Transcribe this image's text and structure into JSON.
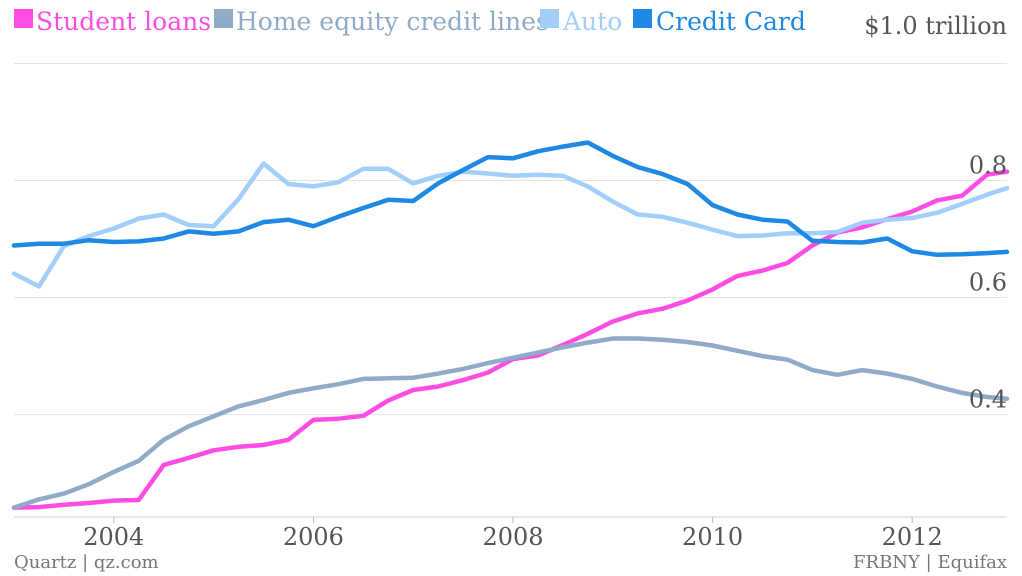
{
  "chart_data": {
    "type": "line",
    "title": "",
    "unit_label": "$1.0 trillion",
    "source_left": "Quartz | qz.com",
    "source_right": "FRBNY | Equifax",
    "xlim": [
      2003.0,
      2012.95
    ],
    "ylim": [
      0.225,
      1.035
    ],
    "x_ticks": [
      2004,
      2006,
      2008,
      2010,
      2012
    ],
    "x_tick_labels": [
      "2004",
      "2006",
      "2008",
      "2010",
      "2012"
    ],
    "y_ticks": [
      0.4,
      0.6,
      0.8
    ],
    "y_tick_labels": [
      "0.4",
      "0.6",
      "0.8"
    ],
    "grid": true,
    "legend_position": "top-left",
    "x": [
      2003.0,
      2003.25,
      2003.5,
      2003.75,
      2004.0,
      2004.25,
      2004.5,
      2004.75,
      2005.0,
      2005.25,
      2005.5,
      2005.75,
      2006.0,
      2006.25,
      2006.5,
      2006.75,
      2007.0,
      2007.25,
      2007.5,
      2007.75,
      2008.0,
      2008.25,
      2008.5,
      2008.75,
      2009.0,
      2009.25,
      2009.5,
      2009.75,
      2010.0,
      2010.25,
      2010.5,
      2010.75,
      2011.0,
      2011.25,
      2011.5,
      2011.75,
      2012.0,
      2012.25,
      2012.5,
      2012.75,
      2012.95
    ],
    "series": [
      {
        "name": "Student loans",
        "color": "#ff4de4",
        "values": [
          0.241,
          0.242,
          0.246,
          0.249,
          0.253,
          0.254,
          0.314,
          0.326,
          0.339,
          0.345,
          0.348,
          0.357,
          0.391,
          0.393,
          0.398,
          0.424,
          0.442,
          0.448,
          0.459,
          0.472,
          0.495,
          0.501,
          0.519,
          0.538,
          0.559,
          0.573,
          0.581,
          0.595,
          0.614,
          0.637,
          0.646,
          0.659,
          0.689,
          0.711,
          0.72,
          0.734,
          0.747,
          0.766,
          0.774,
          0.81,
          0.815
        ]
      },
      {
        "name": "Home equity credit lines",
        "color": "#8fabc7",
        "values": [
          0.241,
          0.255,
          0.265,
          0.281,
          0.302,
          0.321,
          0.357,
          0.38,
          0.397,
          0.414,
          0.425,
          0.437,
          0.445,
          0.452,
          0.461,
          0.462,
          0.463,
          0.47,
          0.478,
          0.488,
          0.497,
          0.506,
          0.515,
          0.523,
          0.53,
          0.53,
          0.528,
          0.524,
          0.518,
          0.509,
          0.5,
          0.494,
          0.476,
          0.468,
          0.476,
          0.47,
          0.461,
          0.448,
          0.437,
          0.43,
          0.427
        ]
      },
      {
        "name": "Auto",
        "color": "#a1cffa",
        "values": [
          0.641,
          0.619,
          0.688,
          0.705,
          0.718,
          0.735,
          0.742,
          0.724,
          0.722,
          0.768,
          0.829,
          0.794,
          0.79,
          0.797,
          0.82,
          0.82,
          0.795,
          0.808,
          0.815,
          0.812,
          0.808,
          0.81,
          0.808,
          0.79,
          0.764,
          0.742,
          0.738,
          0.728,
          0.716,
          0.705,
          0.706,
          0.71,
          0.71,
          0.712,
          0.728,
          0.733,
          0.736,
          0.745,
          0.76,
          0.776,
          0.787
        ]
      },
      {
        "name": "Credit Card",
        "color": "#1e88e5",
        "values": [
          0.689,
          0.692,
          0.692,
          0.698,
          0.695,
          0.696,
          0.701,
          0.713,
          0.709,
          0.713,
          0.729,
          0.733,
          0.722,
          0.738,
          0.753,
          0.767,
          0.765,
          0.795,
          0.818,
          0.84,
          0.838,
          0.85,
          0.858,
          0.865,
          0.842,
          0.823,
          0.811,
          0.794,
          0.758,
          0.742,
          0.733,
          0.73,
          0.697,
          0.695,
          0.694,
          0.701,
          0.679,
          0.673,
          0.674,
          0.676,
          0.678
        ]
      }
    ]
  }
}
